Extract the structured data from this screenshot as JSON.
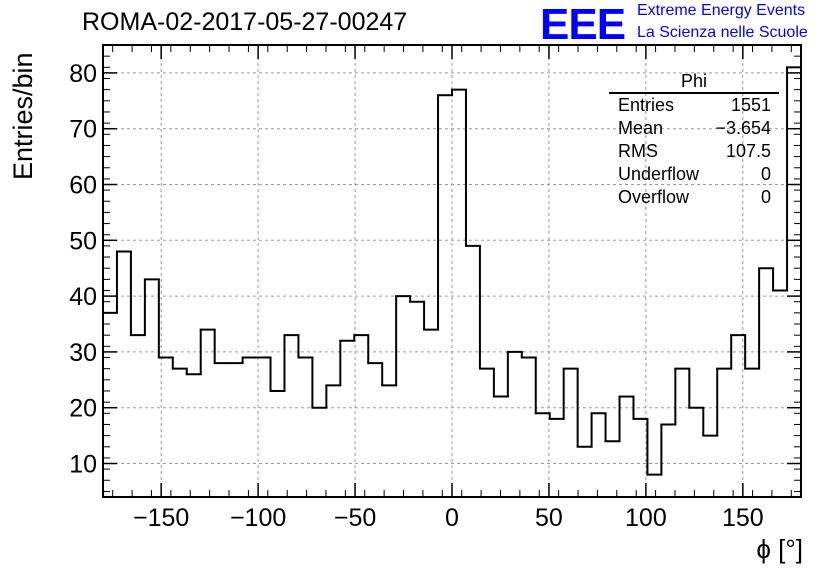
{
  "header": {
    "title": "ROMA-02-2017-05-27-00247",
    "logo_text": "EEE",
    "brand_line1": "Extreme Energy Events",
    "brand_line2": "La Scienza nelle Scuole",
    "brand_color": "#0000ff"
  },
  "stats_box": {
    "title": "Phi",
    "rows": [
      {
        "label": "Entries",
        "value": "1551"
      },
      {
        "label": "Mean",
        "value": "−3.654"
      },
      {
        "label": "RMS",
        "value": "107.5"
      },
      {
        "label": "Underflow",
        "value": "0"
      },
      {
        "label": "Overflow",
        "value": "0"
      }
    ]
  },
  "chart_data": {
    "type": "histogram",
    "xlabel": "ϕ [°]",
    "ylabel": "Entries/bin",
    "xlim": [
      -180,
      180
    ],
    "ylim": [
      4,
      85
    ],
    "bin_width": 7.2,
    "xticks": [
      -150,
      -100,
      -50,
      0,
      50,
      100,
      150
    ],
    "yticks": [
      10,
      20,
      30,
      40,
      50,
      60,
      70,
      80
    ],
    "grid": true,
    "values": [
      37,
      48,
      33,
      43,
      29,
      27,
      26,
      34,
      28,
      28,
      29,
      29,
      23,
      33,
      29,
      20,
      24,
      32,
      33,
      28,
      24,
      40,
      39,
      34,
      76,
      77,
      49,
      27,
      22,
      30,
      29,
      19,
      18,
      27,
      13,
      19,
      14,
      22,
      18,
      8,
      17,
      27,
      20,
      15,
      27,
      33,
      27,
      45,
      41,
      81
    ]
  }
}
